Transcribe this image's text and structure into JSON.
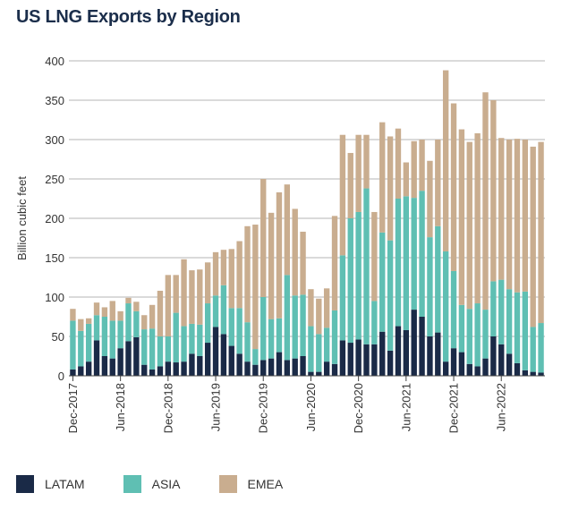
{
  "chart_data": {
    "type": "bar",
    "stacked": true,
    "title": "US LNG Exports by Region",
    "ylabel": "Billion cubic feet",
    "xlabel": "",
    "ylim": [
      0,
      400
    ],
    "yticks": [
      0,
      50,
      100,
      150,
      200,
      250,
      300,
      350,
      400
    ],
    "grid": true,
    "legend_position": "bottom",
    "xtick_labels": [
      "Dec-2017",
      "Jun-2018",
      "Dec-2018",
      "Jun-2019",
      "Dec-2019",
      "Jun-2020",
      "Dec-2020",
      "Jun-2021",
      "Dec-2021",
      "Jun-2022"
    ],
    "xtick_indices": [
      0,
      6,
      12,
      18,
      24,
      30,
      36,
      42,
      48,
      54
    ],
    "categories": [
      "Dec-2017",
      "Jan-2018",
      "Feb-2018",
      "Mar-2018",
      "Apr-2018",
      "May-2018",
      "Jun-2018",
      "Jul-2018",
      "Aug-2018",
      "Sep-2018",
      "Oct-2018",
      "Nov-2018",
      "Dec-2018",
      "Jan-2019",
      "Feb-2019",
      "Mar-2019",
      "Apr-2019",
      "May-2019",
      "Jun-2019",
      "Jul-2019",
      "Aug-2019",
      "Sep-2019",
      "Oct-2019",
      "Nov-2019",
      "Dec-2019",
      "Jan-2020",
      "Feb-2020",
      "Mar-2020",
      "Apr-2020",
      "May-2020",
      "Jun-2020",
      "Jul-2020",
      "Aug-2020",
      "Sep-2020",
      "Oct-2020",
      "Nov-2020",
      "Dec-2020",
      "Jan-2021",
      "Feb-2021",
      "Mar-2021",
      "Apr-2021",
      "May-2021",
      "Jun-2021",
      "Jul-2021",
      "Aug-2021",
      "Sep-2021",
      "Oct-2021",
      "Nov-2021",
      "Dec-2021",
      "Jan-2022",
      "Feb-2022",
      "Mar-2022",
      "Apr-2022",
      "May-2022",
      "Jun-2022",
      "Jul-2022",
      "Aug-2022",
      "Sep-2022",
      "Oct-2022",
      "Nov-2022"
    ],
    "series": [
      {
        "name": "LATAM",
        "color": "#1a2a47",
        "values": [
          8,
          12,
          18,
          45,
          25,
          22,
          35,
          44,
          49,
          14,
          8,
          12,
          18,
          17,
          18,
          28,
          25,
          42,
          62,
          53,
          38,
          28,
          18,
          14,
          20,
          22,
          30,
          20,
          22,
          25,
          5,
          5,
          18,
          15,
          45,
          42,
          46,
          40,
          40,
          56,
          32,
          63,
          58,
          84,
          75,
          50,
          55,
          18,
          35,
          30,
          15,
          12,
          22,
          50,
          40,
          28,
          16,
          7,
          5,
          4
        ]
      },
      {
        "name": "ASIA",
        "color": "#5fbfb3",
        "values": [
          62,
          45,
          48,
          32,
          50,
          48,
          35,
          48,
          33,
          45,
          52,
          38,
          32,
          63,
          45,
          38,
          40,
          50,
          40,
          62,
          48,
          58,
          50,
          20,
          80,
          50,
          43,
          108,
          80,
          78,
          58,
          48,
          43,
          68,
          108,
          158,
          162,
          198,
          55,
          126,
          140,
          162,
          170,
          142,
          160,
          126,
          135,
          140,
          98,
          60,
          70,
          80,
          62,
          70,
          82,
          82,
          90,
          100,
          57,
          63
        ]
      },
      {
        "name": "EMEA",
        "color": "#c9ad8f",
        "values": [
          15,
          15,
          7,
          16,
          12,
          25,
          12,
          7,
          12,
          18,
          30,
          58,
          78,
          48,
          85,
          68,
          70,
          52,
          55,
          45,
          75,
          85,
          122,
          158,
          150,
          135,
          160,
          115,
          110,
          80,
          47,
          45,
          50,
          120,
          153,
          83,
          98,
          68,
          113,
          140,
          132,
          89,
          43,
          72,
          65,
          97,
          110,
          230,
          213,
          223,
          212,
          216,
          276,
          230,
          180,
          190,
          195,
          193,
          229,
          230
        ]
      }
    ]
  },
  "legend": [
    {
      "label": "LATAM",
      "color": "#1a2a47"
    },
    {
      "label": "ASIA",
      "color": "#5fbfb3"
    },
    {
      "label": "EMEA",
      "color": "#c9ad8f"
    }
  ]
}
